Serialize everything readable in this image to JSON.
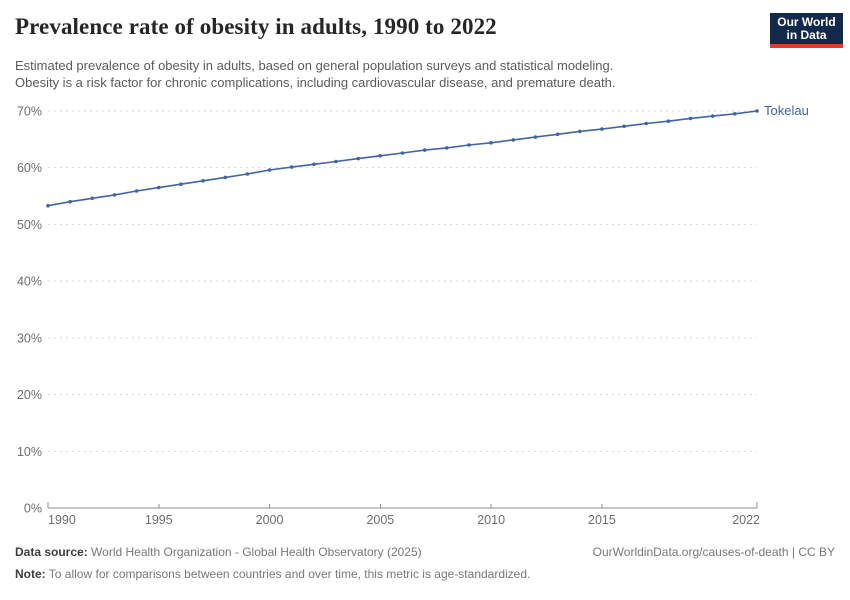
{
  "header": {
    "title": "Prevalence rate of obesity in adults, 1990 to 2022",
    "subtitle_line1": "Estimated prevalence of obesity in adults, based on general population surveys and statistical modeling.",
    "subtitle_line2": "Obesity is a risk factor for chronic complications, including cardiovascular disease, and premature death.",
    "logo": {
      "line1": "Our World",
      "line2": "in Data"
    }
  },
  "footer": {
    "data_source_label": "Data source:",
    "data_source": "World Health Organization - Global Health Observatory (2025)",
    "link": "OurWorldinData.org/causes-of-death | CC BY",
    "note_label": "Note:",
    "note": "To allow for comparisons between countries and over time, this metric is age-standardized."
  },
  "colors": {
    "line": "#4165a3",
    "grid": "#d9d9d9",
    "axis": "#8f8f8f",
    "tick_text": "#6e6e6e",
    "logo_bg": "#12294b",
    "logo_accent": "#e23b34"
  },
  "chart_data": {
    "type": "line",
    "title": "Prevalence rate of obesity in adults, 1990 to 2022",
    "xlabel": "",
    "ylabel": "",
    "xlim": [
      1990,
      2022
    ],
    "ylim": [
      0,
      70
    ],
    "x_ticks": [
      1990,
      1995,
      2000,
      2005,
      2010,
      2015,
      2022
    ],
    "y_ticks": [
      0,
      10,
      20,
      30,
      40,
      50,
      60,
      70
    ],
    "y_tick_suffix": "%",
    "grid": "dashed-horizontal",
    "legend_position": "end-of-line-label",
    "series": [
      {
        "name": "Tokelau",
        "color": "#4165a3",
        "years": [
          1990,
          1991,
          1992,
          1993,
          1994,
          1995,
          1996,
          1997,
          1998,
          1999,
          2000,
          2001,
          2002,
          2003,
          2004,
          2005,
          2006,
          2007,
          2008,
          2009,
          2010,
          2011,
          2012,
          2013,
          2014,
          2015,
          2016,
          2017,
          2018,
          2019,
          2020,
          2021,
          2022
        ],
        "values": [
          53.3,
          54.0,
          54.6,
          55.2,
          55.9,
          56.5,
          57.1,
          57.7,
          58.3,
          58.9,
          59.6,
          60.1,
          60.6,
          61.1,
          61.6,
          62.1,
          62.6,
          63.1,
          63.5,
          64.0,
          64.4,
          64.9,
          65.4,
          65.9,
          66.4,
          66.8,
          67.3,
          67.8,
          68.2,
          68.7,
          69.1,
          69.5,
          70.0
        ]
      }
    ]
  }
}
